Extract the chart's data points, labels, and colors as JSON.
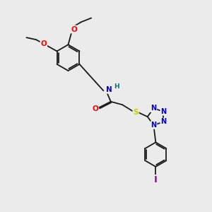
{
  "bg_color": "#ebebeb",
  "bond_color": "#1a1a1a",
  "bond_width": 1.3,
  "atom_colors": {
    "O": "#ff0000",
    "N": "#0000cc",
    "S": "#cccc00",
    "I": "#9900aa",
    "H": "#007777",
    "C": "#1a1a1a"
  },
  "font_size": 7.5,
  "fig_size": [
    3.0,
    3.0
  ],
  "dpi": 100
}
